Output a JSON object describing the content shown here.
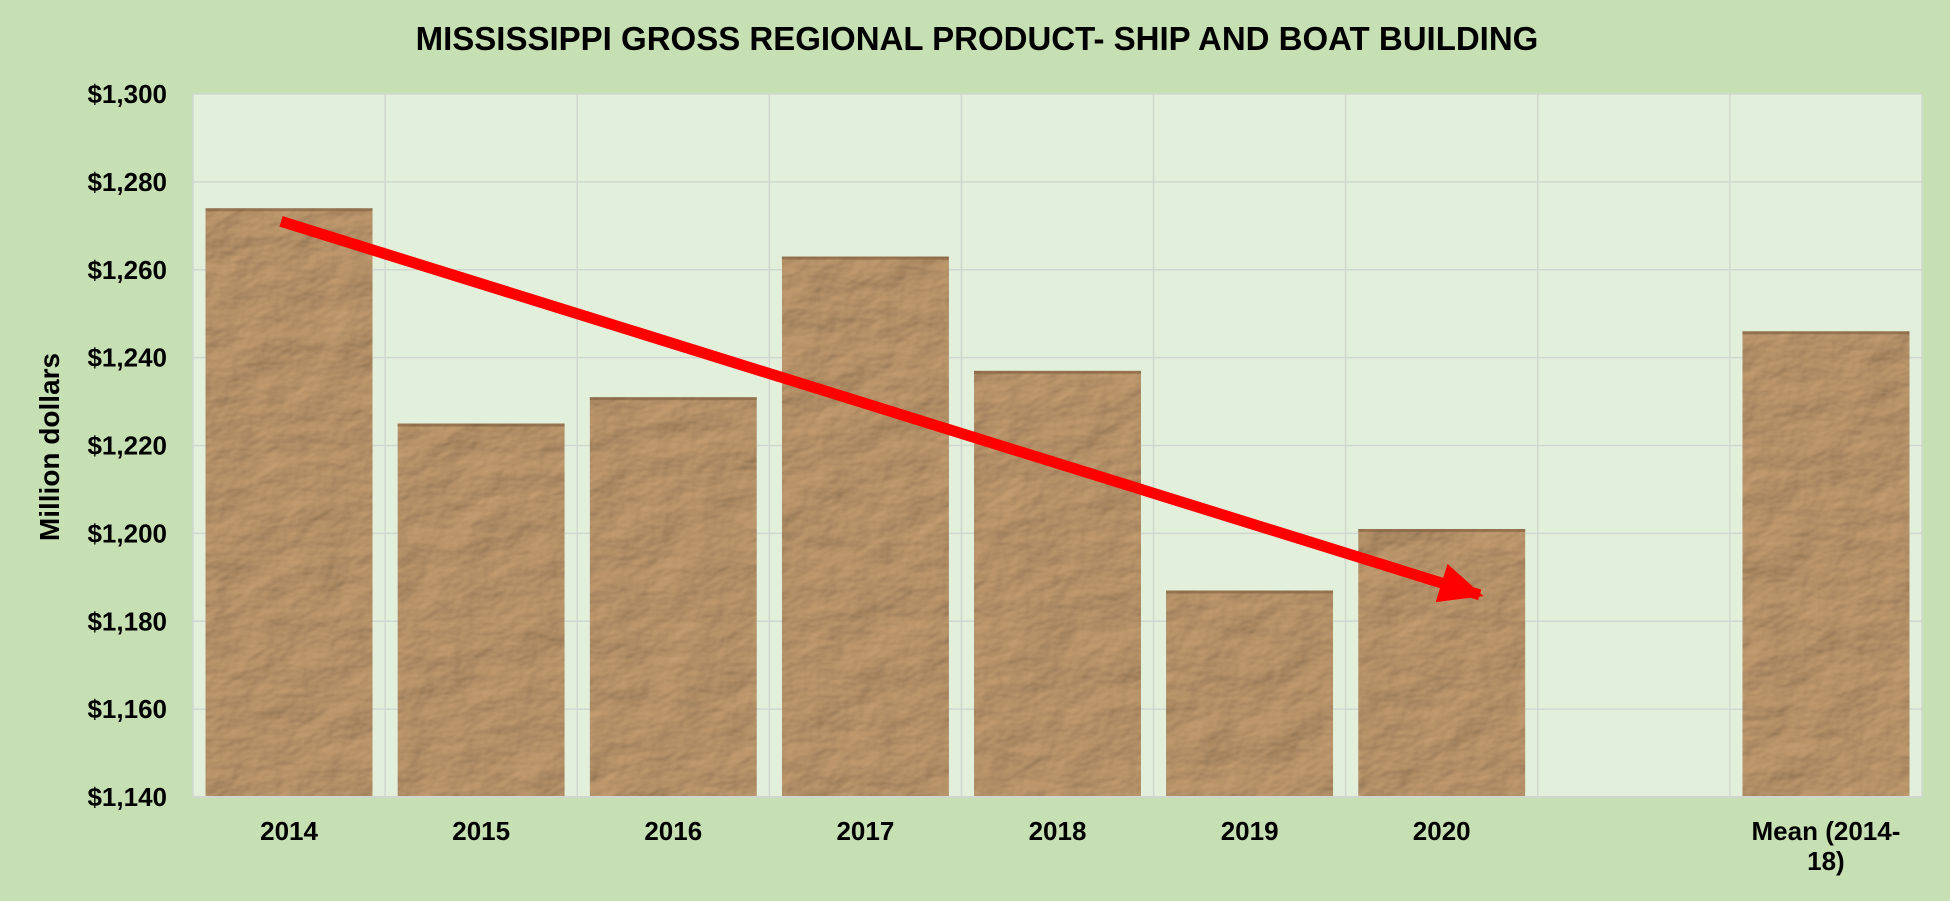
{
  "chart_data": {
    "type": "bar",
    "title": "MISSISSIPPI GROSS REGIONAL PRODUCT- SHIP AND BOAT BUILDING",
    "ylabel": "Million dollars",
    "xlabel": "",
    "categories": [
      "2014",
      "2015",
      "2016",
      "2017",
      "2018",
      "2019",
      "2020",
      "",
      "Mean (2014-18)"
    ],
    "category_lines": [
      [
        "2014"
      ],
      [
        "2015"
      ],
      [
        "2016"
      ],
      [
        "2017"
      ],
      [
        "2018"
      ],
      [
        "2019"
      ],
      [
        "2020"
      ],
      [
        ""
      ],
      [
        "Mean (2014-",
        "18)"
      ]
    ],
    "values": [
      1274,
      1225,
      1231,
      1263,
      1237,
      1187,
      1201,
      null,
      1246
    ],
    "ylim": [
      1140,
      1300
    ],
    "yticks": [
      1140,
      1160,
      1180,
      1200,
      1220,
      1240,
      1260,
      1280,
      1300
    ],
    "ytick_labels": [
      "$1,140",
      "$1,160",
      "$1,180",
      "$1,200",
      "$1,220",
      "$1,240",
      "$1,260",
      "$1,280",
      "$1,300"
    ],
    "grid": true,
    "legend": "none",
    "annotations": [
      {
        "type": "arrow",
        "from": {
          "x": "2014",
          "y": 1271
        },
        "to": {
          "x": "2020",
          "y": 1186
        },
        "color": "#ff0000"
      }
    ],
    "colors": {
      "page_background": "#c6e0b4",
      "plot_background": "#e2efda",
      "gridline": "#d0d7d0",
      "bar_base": "#b9946a",
      "bar_dark": "#7a5a3a",
      "bar_light": "#e6cda8",
      "arrow": "#ff0000"
    }
  }
}
